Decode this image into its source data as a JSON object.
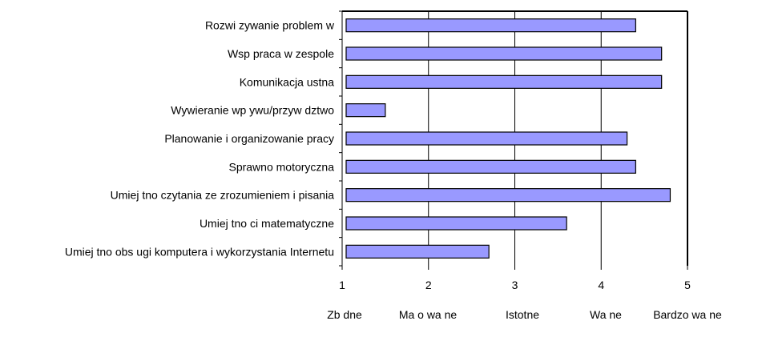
{
  "chart_data": {
    "type": "bar",
    "orientation": "horizontal",
    "categories": [
      "Rozwi  zywanie problem  w",
      "Wsp   praca w zespole",
      "Komunikacja ustna",
      "Wywieranie wp ywu/przyw  dztwo",
      "Planowanie i organizowanie pracy",
      "Sprawno     motoryczna",
      "Umiej  tno     czytania ze zrozumieniem i pisania",
      "Umiej  tno  ci matematyczne",
      "Umiej  tno     obs ugi komputera i wykorzystania Internetu"
    ],
    "values": [
      4.4,
      4.7,
      4.7,
      1.5,
      4.3,
      4.4,
      4.8,
      3.6,
      2.7
    ],
    "xlim": [
      1,
      5
    ],
    "xticks": [
      "1",
      "2",
      "3",
      "4",
      "5"
    ],
    "scale_labels": [
      "Zb  dne",
      "Ma o wa  ne",
      "Istotne",
      "Wa  ne",
      "Bardzo wa  ne"
    ],
    "grid": "vertical",
    "legend": "none",
    "bar_color": "#9999ff",
    "bar_edge_color": "#000000"
  }
}
